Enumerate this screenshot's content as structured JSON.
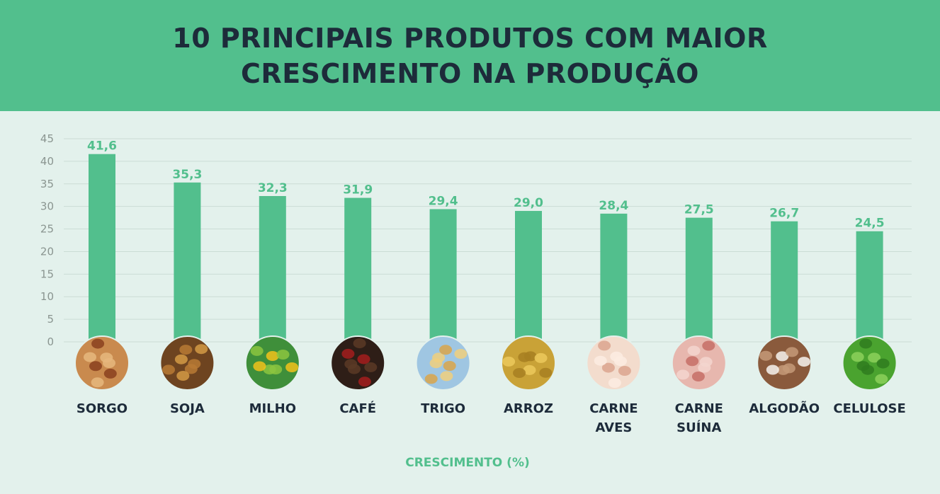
{
  "header": {
    "title_line1": "10 PRINCIPAIS PRODUTOS COM MAIOR",
    "title_line2": "CRESCIMENTO NA PRODUÇÃO"
  },
  "colors": {
    "header_bg": "#52bf8d",
    "bar": "#52bf8d",
    "title": "#1d2b3a",
    "background": "#e3f1ec"
  },
  "chart_data": {
    "type": "bar",
    "title": "10 PRINCIPAIS PRODUTOS COM MAIOR CRESCIMENTO NA PRODUÇÃO",
    "xlabel": "CRESCIMENTO (%)",
    "ylabel": "",
    "ylim": [
      0,
      45
    ],
    "yticks": [
      "0",
      "5",
      "10",
      "15",
      "20",
      "25",
      "30",
      "35",
      "40",
      "45"
    ],
    "grid": true,
    "categories": [
      [
        "SORGO"
      ],
      [
        "SOJA"
      ],
      [
        "MILHO"
      ],
      [
        "CAFÉ"
      ],
      [
        "TRIGO"
      ],
      [
        "ARROZ"
      ],
      [
        "CARNE",
        "AVES"
      ],
      [
        "CARNE",
        "SUÍNA"
      ],
      [
        "ALGODÃO"
      ],
      [
        "CELULOSE"
      ]
    ],
    "values": [
      41.6,
      35.3,
      32.3,
      31.9,
      29.4,
      29.0,
      28.4,
      27.5,
      26.7,
      24.5
    ],
    "value_labels": [
      "41,6",
      "35,3",
      "32,3",
      "31,9",
      "29,4",
      "29,0",
      "28,4",
      "27,5",
      "26,7",
      "24,5"
    ],
    "icons": [
      "sorghum-icon",
      "soybean-icon",
      "corn-icon",
      "coffee-icon",
      "wheat-icon",
      "rice-icon",
      "chicken-meat-icon",
      "pork-meat-icon",
      "cotton-icon",
      "leaf-icon"
    ]
  }
}
